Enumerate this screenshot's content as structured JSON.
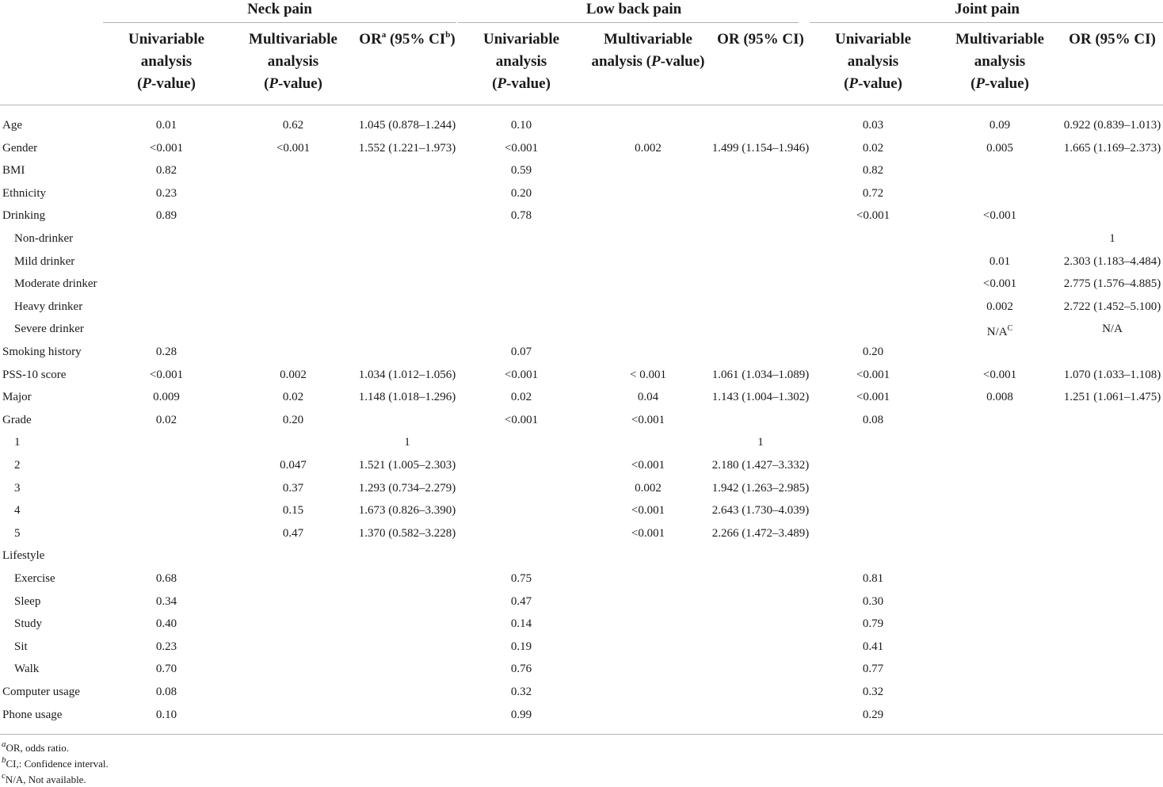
{
  "groups": {
    "neck": "Neck pain",
    "low_back": "Low back pain",
    "joint": "Joint pain"
  },
  "headers": {
    "univariable_1": "Univariable",
    "univariable_2": "analysis",
    "p_open": "(",
    "p_italic": "P",
    "p_close": "-value)",
    "multivariable_1": "Multivariable",
    "multivariable_2": "analysis",
    "multivariable_inline": "analysis (",
    "or_prefix": "OR",
    "or_sup_a": "a",
    "or_ci_prefix": " (95% CI",
    "or_sup_b": "b",
    "or_ci_close": ")",
    "or_plain": "OR (95% CI)"
  },
  "rows": [
    {
      "label": "Age",
      "sub": false,
      "neck_uni": "0.01",
      "neck_multi": "0.62",
      "neck_or": "1.045 (0.878–1.244)",
      "lb_uni": "0.10",
      "lb_multi": "",
      "lb_or": "",
      "joint_uni": "0.03",
      "joint_multi": "0.09",
      "joint_or": "0.922 (0.839–1.013)"
    },
    {
      "label": "Gender",
      "sub": false,
      "neck_uni": "<0.001",
      "neck_multi": "<0.001",
      "neck_or": "1.552 (1.221–1.973)",
      "lb_uni": "<0.001",
      "lb_multi": "0.002",
      "lb_or": "1.499 (1.154–1.946)",
      "joint_uni": "0.02",
      "joint_multi": "0.005",
      "joint_or": "1.665 (1.169–2.373)"
    },
    {
      "label": "BMI",
      "sub": false,
      "neck_uni": "0.82",
      "neck_multi": "",
      "neck_or": "",
      "lb_uni": "0.59",
      "lb_multi": "",
      "lb_or": "",
      "joint_uni": "0.82",
      "joint_multi": "",
      "joint_or": ""
    },
    {
      "label": "Ethnicity",
      "sub": false,
      "neck_uni": "0.23",
      "neck_multi": "",
      "neck_or": "",
      "lb_uni": "0.20",
      "lb_multi": "",
      "lb_or": "",
      "joint_uni": "0.72",
      "joint_multi": "",
      "joint_or": ""
    },
    {
      "label": "Drinking",
      "sub": false,
      "neck_uni": "0.89",
      "neck_multi": "",
      "neck_or": "",
      "lb_uni": "0.78",
      "lb_multi": "",
      "lb_or": "",
      "joint_uni": "<0.001",
      "joint_multi": "<0.001",
      "joint_or": ""
    },
    {
      "label": "Non-drinker",
      "sub": true,
      "neck_uni": "",
      "neck_multi": "",
      "neck_or": "",
      "lb_uni": "",
      "lb_multi": "",
      "lb_or": "",
      "joint_uni": "",
      "joint_multi": "",
      "joint_or": "1"
    },
    {
      "label": "Mild drinker",
      "sub": true,
      "neck_uni": "",
      "neck_multi": "",
      "neck_or": "",
      "lb_uni": "",
      "lb_multi": "",
      "lb_or": "",
      "joint_uni": "",
      "joint_multi": "0.01",
      "joint_or": "2.303 (1.183–4.484)"
    },
    {
      "label": "Moderate drinker",
      "sub": true,
      "neck_uni": "",
      "neck_multi": "",
      "neck_or": "",
      "lb_uni": "",
      "lb_multi": "",
      "lb_or": "",
      "joint_uni": "",
      "joint_multi": "<0.001",
      "joint_or": "2.775 (1.576–4.885)"
    },
    {
      "label": "Heavy drinker",
      "sub": true,
      "neck_uni": "",
      "neck_multi": "",
      "neck_or": "",
      "lb_uni": "",
      "lb_multi": "",
      "lb_or": "",
      "joint_uni": "",
      "joint_multi": "0.002",
      "joint_or": "2.722 (1.452–5.100)"
    },
    {
      "label": "Severe drinker",
      "sub": true,
      "neck_uni": "",
      "neck_multi": "",
      "neck_or": "",
      "lb_uni": "",
      "lb_multi": "",
      "lb_or": "",
      "joint_uni": "",
      "joint_multi": "N/A",
      "joint_multi_sup": "C",
      "joint_or": "N/A"
    },
    {
      "label": "Smoking history",
      "sub": false,
      "neck_uni": "0.28",
      "neck_multi": "",
      "neck_or": "",
      "lb_uni": "0.07",
      "lb_multi": "",
      "lb_or": "",
      "joint_uni": "0.20",
      "joint_multi": "",
      "joint_or": ""
    },
    {
      "label": "PSS-10 score",
      "sub": false,
      "neck_uni": "<0.001",
      "neck_multi": "0.002",
      "neck_or": "1.034 (1.012–1.056)",
      "lb_uni": "<0.001",
      "lb_multi": "< 0.001",
      "lb_or": "1.061 (1.034–1.089)",
      "joint_uni": "<0.001",
      "joint_multi": "<0.001",
      "joint_or": "1.070 (1.033–1.108)"
    },
    {
      "label": "Major",
      "sub": false,
      "neck_uni": "0.009",
      "neck_multi": "0.02",
      "neck_or": "1.148 (1.018–1.296)",
      "lb_uni": "0.02",
      "lb_multi": "0.04",
      "lb_or": "1.143 (1.004–1.302)",
      "joint_uni": "<0.001",
      "joint_multi": "0.008",
      "joint_or": "1.251 (1.061–1.475)"
    },
    {
      "label": "Grade",
      "sub": false,
      "neck_uni": "0.02",
      "neck_multi": "0.20",
      "neck_or": "",
      "lb_uni": "<0.001",
      "lb_multi": "<0.001",
      "lb_or": "",
      "joint_uni": "0.08",
      "joint_multi": "",
      "joint_or": ""
    },
    {
      "label": "1",
      "sub": true,
      "neck_uni": "",
      "neck_multi": "",
      "neck_or": "1",
      "lb_uni": "",
      "lb_multi": "",
      "lb_or": "1",
      "joint_uni": "",
      "joint_multi": "",
      "joint_or": ""
    },
    {
      "label": "2",
      "sub": true,
      "neck_uni": "",
      "neck_multi": "0.047",
      "neck_or": "1.521 (1.005–2.303)",
      "lb_uni": "",
      "lb_multi": "<0.001",
      "lb_or": "2.180 (1.427–3.332)",
      "joint_uni": "",
      "joint_multi": "",
      "joint_or": ""
    },
    {
      "label": "3",
      "sub": true,
      "neck_uni": "",
      "neck_multi": "0.37",
      "neck_or": "1.293 (0.734–2.279)",
      "lb_uni": "",
      "lb_multi": "0.002",
      "lb_or": "1.942 (1.263–2.985)",
      "joint_uni": "",
      "joint_multi": "",
      "joint_or": ""
    },
    {
      "label": "4",
      "sub": true,
      "neck_uni": "",
      "neck_multi": "0.15",
      "neck_or": "1.673 (0.826–3.390)",
      "lb_uni": "",
      "lb_multi": "<0.001",
      "lb_or": "2.643 (1.730–4.039)",
      "joint_uni": "",
      "joint_multi": "",
      "joint_or": ""
    },
    {
      "label": "5",
      "sub": true,
      "neck_uni": "",
      "neck_multi": "0.47",
      "neck_or": "1.370 (0.582–3.228)",
      "lb_uni": "",
      "lb_multi": "<0.001",
      "lb_or": "2.266 (1.472–3.489)",
      "joint_uni": "",
      "joint_multi": "",
      "joint_or": ""
    },
    {
      "label": "Lifestyle",
      "sub": false,
      "neck_uni": "",
      "neck_multi": "",
      "neck_or": "",
      "lb_uni": "",
      "lb_multi": "",
      "lb_or": "",
      "joint_uni": "",
      "joint_multi": "",
      "joint_or": ""
    },
    {
      "label": "Exercise",
      "sub": true,
      "neck_uni": "0.68",
      "neck_multi": "",
      "neck_or": "",
      "lb_uni": "0.75",
      "lb_multi": "",
      "lb_or": "",
      "joint_uni": "0.81",
      "joint_multi": "",
      "joint_or": ""
    },
    {
      "label": "Sleep",
      "sub": true,
      "neck_uni": "0.34",
      "neck_multi": "",
      "neck_or": "",
      "lb_uni": "0.47",
      "lb_multi": "",
      "lb_or": "",
      "joint_uni": "0.30",
      "joint_multi": "",
      "joint_or": ""
    },
    {
      "label": "Study",
      "sub": true,
      "neck_uni": "0.40",
      "neck_multi": "",
      "neck_or": "",
      "lb_uni": "0.14",
      "lb_multi": "",
      "lb_or": "",
      "joint_uni": "0.79",
      "joint_multi": "",
      "joint_or": ""
    },
    {
      "label": "Sit",
      "sub": true,
      "neck_uni": "0.23",
      "neck_multi": "",
      "neck_or": "",
      "lb_uni": "0.19",
      "lb_multi": "",
      "lb_or": "",
      "joint_uni": "0.41",
      "joint_multi": "",
      "joint_or": ""
    },
    {
      "label": "Walk",
      "sub": true,
      "neck_uni": "0.70",
      "neck_multi": "",
      "neck_or": "",
      "lb_uni": "0.76",
      "lb_multi": "",
      "lb_or": "",
      "joint_uni": "0.77",
      "joint_multi": "",
      "joint_or": ""
    },
    {
      "label": "Computer usage",
      "sub": false,
      "neck_uni": "0.08",
      "neck_multi": "",
      "neck_or": "",
      "lb_uni": "0.32",
      "lb_multi": "",
      "lb_or": "",
      "joint_uni": "0.32",
      "joint_multi": "",
      "joint_or": ""
    },
    {
      "label": "Phone usage",
      "sub": false,
      "neck_uni": "0.10",
      "neck_multi": "",
      "neck_or": "",
      "lb_uni": "0.99",
      "lb_multi": "",
      "lb_or": "",
      "joint_uni": "0.29",
      "joint_multi": "",
      "joint_or": ""
    }
  ],
  "footnotes": [
    {
      "mark": "a",
      "text": "OR, odds ratio."
    },
    {
      "mark": "b",
      "text": "CI,: Confidence interval."
    },
    {
      "mark": "c",
      "text": "N/A, Not available."
    }
  ]
}
